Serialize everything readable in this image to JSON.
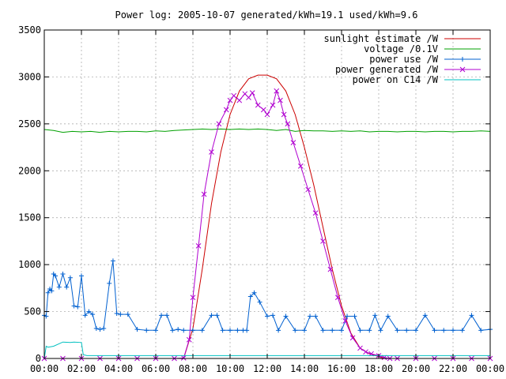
{
  "chart_data": {
    "type": "line",
    "title": "Power log: 2005-10-07 generated/kWh=19.1 used/kWh=9.6",
    "xlabel": "",
    "ylabel": "",
    "xlim": [
      0,
      24
    ],
    "ylim": [
      0,
      3500
    ],
    "grid": true,
    "legend_position": "top-right",
    "x_ticks": [
      "00:00",
      "02:00",
      "04:00",
      "06:00",
      "08:00",
      "10:00",
      "12:00",
      "14:00",
      "16:00",
      "18:00",
      "20:00",
      "22:00",
      "00:00"
    ],
    "y_ticks": [
      0,
      500,
      1000,
      1500,
      2000,
      2500,
      3000,
      3500
    ],
    "series": [
      {
        "name": "sunlight estimate /W",
        "color": "#cc0000",
        "style": "line",
        "x": [
          7.5,
          8.0,
          8.5,
          9.0,
          9.5,
          10.0,
          10.5,
          11.0,
          11.5,
          12.0,
          12.5,
          13.0,
          13.5,
          14.0,
          14.5,
          15.0,
          15.5,
          16.0,
          16.5,
          17.0,
          17.5,
          18.0,
          18.3
        ],
        "y": [
          0,
          320,
          950,
          1650,
          2200,
          2600,
          2850,
          2980,
          3020,
          3020,
          2980,
          2850,
          2600,
          2250,
          1850,
          1400,
          950,
          560,
          270,
          110,
          50,
          20,
          0
        ]
      },
      {
        "name": "voltage /0.1V",
        "color": "#00a000",
        "style": "line",
        "x": [
          0,
          0.5,
          1,
          1.5,
          2,
          2.5,
          3,
          3.5,
          4,
          4.5,
          5,
          5.5,
          6,
          6.5,
          7,
          7.5,
          8,
          8.5,
          9,
          9.5,
          10,
          10.5,
          11,
          11.5,
          12,
          12.5,
          13,
          13.5,
          14,
          14.5,
          15,
          15.5,
          16,
          16.5,
          17,
          17.5,
          18,
          18.5,
          19,
          19.5,
          20,
          20.5,
          21,
          21.5,
          22,
          22.5,
          23,
          23.5,
          24
        ],
        "y": [
          2440,
          2430,
          2410,
          2420,
          2415,
          2420,
          2410,
          2420,
          2415,
          2420,
          2420,
          2415,
          2425,
          2420,
          2430,
          2435,
          2440,
          2445,
          2440,
          2445,
          2440,
          2445,
          2440,
          2445,
          2440,
          2430,
          2440,
          2420,
          2430,
          2425,
          2425,
          2420,
          2425,
          2420,
          2425,
          2415,
          2420,
          2420,
          2415,
          2420,
          2420,
          2415,
          2420,
          2420,
          2415,
          2420,
          2420,
          2425,
          2420
        ]
      },
      {
        "name": "power use /W",
        "color": "#0060d0",
        "style": "linespoints",
        "x": [
          0,
          0.1,
          0.2,
          0.3,
          0.4,
          0.5,
          0.6,
          0.8,
          1.0,
          1.2,
          1.4,
          1.6,
          1.8,
          2.0,
          2.2,
          2.4,
          2.6,
          2.8,
          3.0,
          3.2,
          3.5,
          3.7,
          3.9,
          4.1,
          4.5,
          5.0,
          5.5,
          6.0,
          6.3,
          6.6,
          6.9,
          7.2,
          7.5,
          8.0,
          8.5,
          9.0,
          9.3,
          9.6,
          10.0,
          10.4,
          10.7,
          10.9,
          11.1,
          11.3,
          11.6,
          12.0,
          12.3,
          12.6,
          13.0,
          13.5,
          14.0,
          14.3,
          14.6,
          15.0,
          15.5,
          16.0,
          16.3,
          16.7,
          17.0,
          17.5,
          17.8,
          18.1,
          18.5,
          19.0,
          19.5,
          20.0,
          20.5,
          21.0,
          21.5,
          22.0,
          22.5,
          23.0,
          23.5,
          24.0
        ],
        "y": [
          460,
          450,
          700,
          740,
          720,
          900,
          880,
          760,
          900,
          760,
          860,
          560,
          550,
          880,
          460,
          500,
          470,
          320,
          310,
          320,
          800,
          1040,
          480,
          470,
          470,
          310,
          300,
          300,
          460,
          460,
          300,
          310,
          300,
          300,
          300,
          460,
          460,
          300,
          300,
          300,
          300,
          300,
          660,
          700,
          600,
          450,
          460,
          300,
          450,
          300,
          300,
          450,
          450,
          300,
          300,
          300,
          450,
          450,
          300,
          300,
          460,
          300,
          450,
          300,
          300,
          300,
          460,
          300,
          300,
          300,
          300,
          460,
          300,
          310
        ]
      },
      {
        "name": "power generated /W",
        "color": "#b000d0",
        "style": "linespoints",
        "x": [
          0,
          1,
          2,
          3,
          4,
          5,
          6,
          7,
          7.5,
          7.8,
          8.0,
          8.3,
          8.6,
          9.0,
          9.4,
          9.8,
          10.0,
          10.2,
          10.5,
          10.8,
          11.0,
          11.2,
          11.5,
          11.8,
          12.0,
          12.3,
          12.5,
          12.7,
          12.9,
          13.1,
          13.4,
          13.8,
          14.2,
          14.6,
          15.0,
          15.4,
          15.8,
          16.2,
          16.6,
          17.0,
          17.3,
          17.6,
          18.0,
          18.3,
          18.6,
          19,
          20,
          21,
          22,
          23,
          24
        ],
        "y": [
          0,
          0,
          0,
          0,
          0,
          0,
          0,
          0,
          5,
          200,
          650,
          1200,
          1750,
          2200,
          2500,
          2650,
          2750,
          2800,
          2750,
          2820,
          2780,
          2830,
          2700,
          2650,
          2600,
          2700,
          2850,
          2750,
          2600,
          2500,
          2300,
          2050,
          1800,
          1550,
          1250,
          950,
          650,
          400,
          220,
          110,
          70,
          50,
          30,
          10,
          0,
          0,
          0,
          0,
          0,
          0,
          0
        ]
      },
      {
        "name": "power on C14 /W",
        "color": "#00c0c0",
        "style": "line",
        "x": [
          0,
          0.1,
          0.2,
          0.5,
          1.0,
          1.4,
          1.6,
          2.0,
          2.1,
          2.3,
          4,
          6,
          8,
          10,
          12,
          14,
          16,
          18,
          20,
          22,
          24
        ],
        "y": [
          0,
          130,
          120,
          130,
          175,
          170,
          175,
          170,
          40,
          30,
          30,
          30,
          30,
          30,
          30,
          30,
          30,
          30,
          30,
          30,
          30
        ]
      }
    ]
  }
}
